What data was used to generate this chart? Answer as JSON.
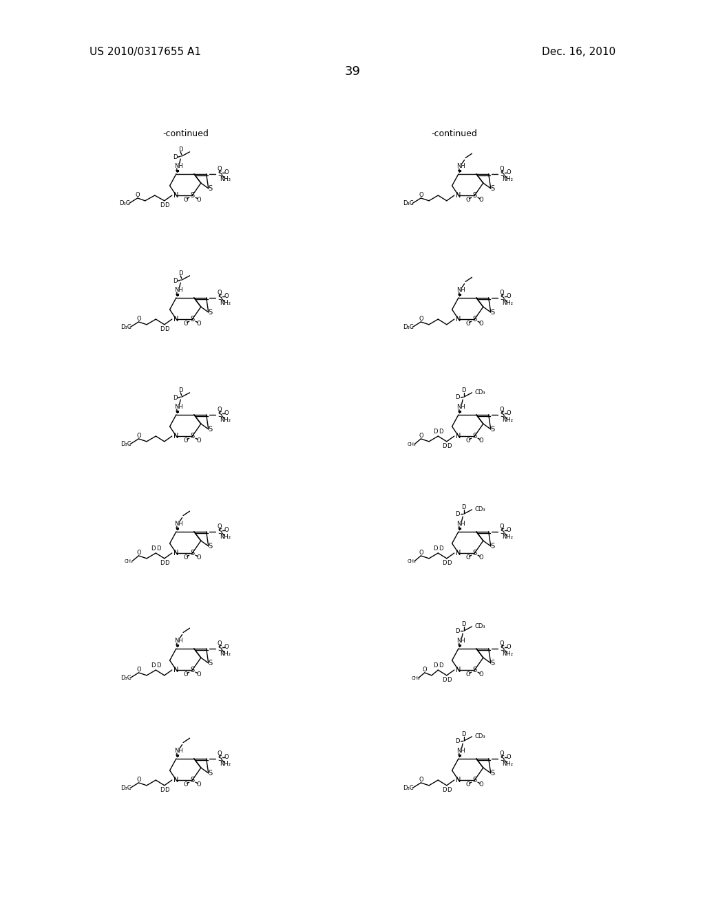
{
  "page_number": "39",
  "patent_number": "US 2010/0317655 A1",
  "patent_date": "Dec. 16, 2010",
  "continued_left": "-continued",
  "continued_right": "-continued",
  "background_color": "#ffffff",
  "line_color": "#000000",
  "text_color": "#000000",
  "font_size_header": 11,
  "font_size_page": 13,
  "font_size_label": 9,
  "font_size_atom": 8
}
